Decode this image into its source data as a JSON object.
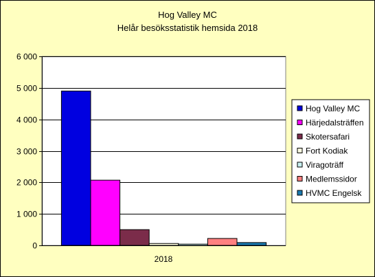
{
  "chart_data": {
    "type": "bar",
    "title": "Hog Valley MC",
    "subtitle": "Helår besöksstatistik hemsida 2018",
    "categories": [
      "2018"
    ],
    "series": [
      {
        "name": "Hog Valley MC",
        "values": [
          4900
        ],
        "color": "#0000e0"
      },
      {
        "name": "Härjedalsträffen",
        "values": [
          2070
        ],
        "color": "#ff00ff"
      },
      {
        "name": "Skotersafari",
        "values": [
          500
        ],
        "color": "#7b2c4a"
      },
      {
        "name": "Fort Kodiak",
        "values": [
          60
        ],
        "color": "#ffffe0"
      },
      {
        "name": "Viragoträff",
        "values": [
          40
        ],
        "color": "#c8f0f0"
      },
      {
        "name": "Medlemssidor",
        "values": [
          220
        ],
        "color": "#ff8080"
      },
      {
        "name": "HVMC Engelsk",
        "values": [
          90
        ],
        "color": "#1a7ab0"
      }
    ],
    "ylim": [
      0,
      6000
    ],
    "yticks": [
      0,
      1000,
      2000,
      3000,
      4000,
      5000,
      6000
    ],
    "ytick_labels": [
      "0",
      "1 000",
      "2 000",
      "3 000",
      "4 000",
      "5 000",
      "6 000"
    ],
    "grid": true,
    "legend_position": "right",
    "plot_background": "#ffffff",
    "chart_background": "#ffffc0"
  }
}
